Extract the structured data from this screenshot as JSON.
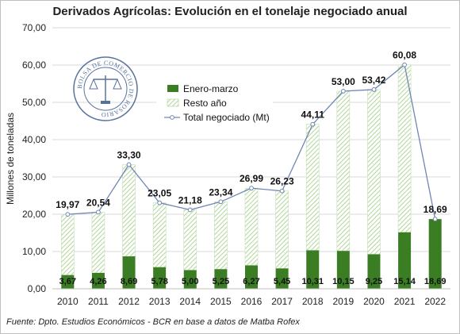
{
  "chart_data": {
    "type": "bar",
    "title": "Derivados Agrícolas: Evolución en el tonelaje negociado anual",
    "ylabel": "Millones de toneladas",
    "xlabel": "",
    "ylim": [
      0,
      70
    ],
    "yticks": [
      "0,00",
      "10,00",
      "20,00",
      "30,00",
      "40,00",
      "50,00",
      "60,00",
      "70,00"
    ],
    "grid": true,
    "legend_position": "upper-left inside",
    "stacked": true,
    "categories": [
      "2010",
      "2011",
      "2012",
      "2013",
      "2014",
      "2015",
      "2016",
      "2017",
      "2018",
      "2019",
      "2020",
      "2021",
      "2022"
    ],
    "series": [
      {
        "name": "Enero-marzo",
        "kind": "bar",
        "color": "#3a7d23",
        "values": [
          3.67,
          4.26,
          8.69,
          5.78,
          5.0,
          5.25,
          6.27,
          5.45,
          10.31,
          10.15,
          9.25,
          15.14,
          18.69
        ],
        "labels": [
          "3,67",
          "4,26",
          "8,69",
          "5,78",
          "5,00",
          "5,25",
          "6,27",
          "5,45",
          "10,31",
          "10,15",
          "9,25",
          "15,14",
          "18,69"
        ]
      },
      {
        "name": "Resto año",
        "kind": "bar-hatched",
        "color": "#a9d18e",
        "values": [
          16.3,
          16.28,
          24.61,
          17.27,
          16.18,
          18.09,
          20.72,
          20.78,
          33.8,
          42.85,
          44.17,
          44.94,
          0.0
        ]
      },
      {
        "name": "Total negociado (Mt)",
        "kind": "line",
        "color": "#6f86b5",
        "values": [
          19.97,
          20.54,
          33.3,
          23.05,
          21.18,
          23.34,
          26.99,
          26.23,
          44.11,
          53.0,
          53.42,
          60.08,
          18.69
        ],
        "labels": [
          "19,97",
          "20,54",
          "33,30",
          "23,05",
          "21,18",
          "23,34",
          "26,99",
          "26,23",
          "44,11",
          "53,00",
          "53,42",
          "60,08",
          "18,69"
        ]
      }
    ]
  },
  "footer": "Fuente: Dpto. Estudios Económicos - BCR en base a datos de Matba Rofex",
  "seal": {
    "text": "BOLSA DE COMERCIO DE ROSARIO"
  }
}
